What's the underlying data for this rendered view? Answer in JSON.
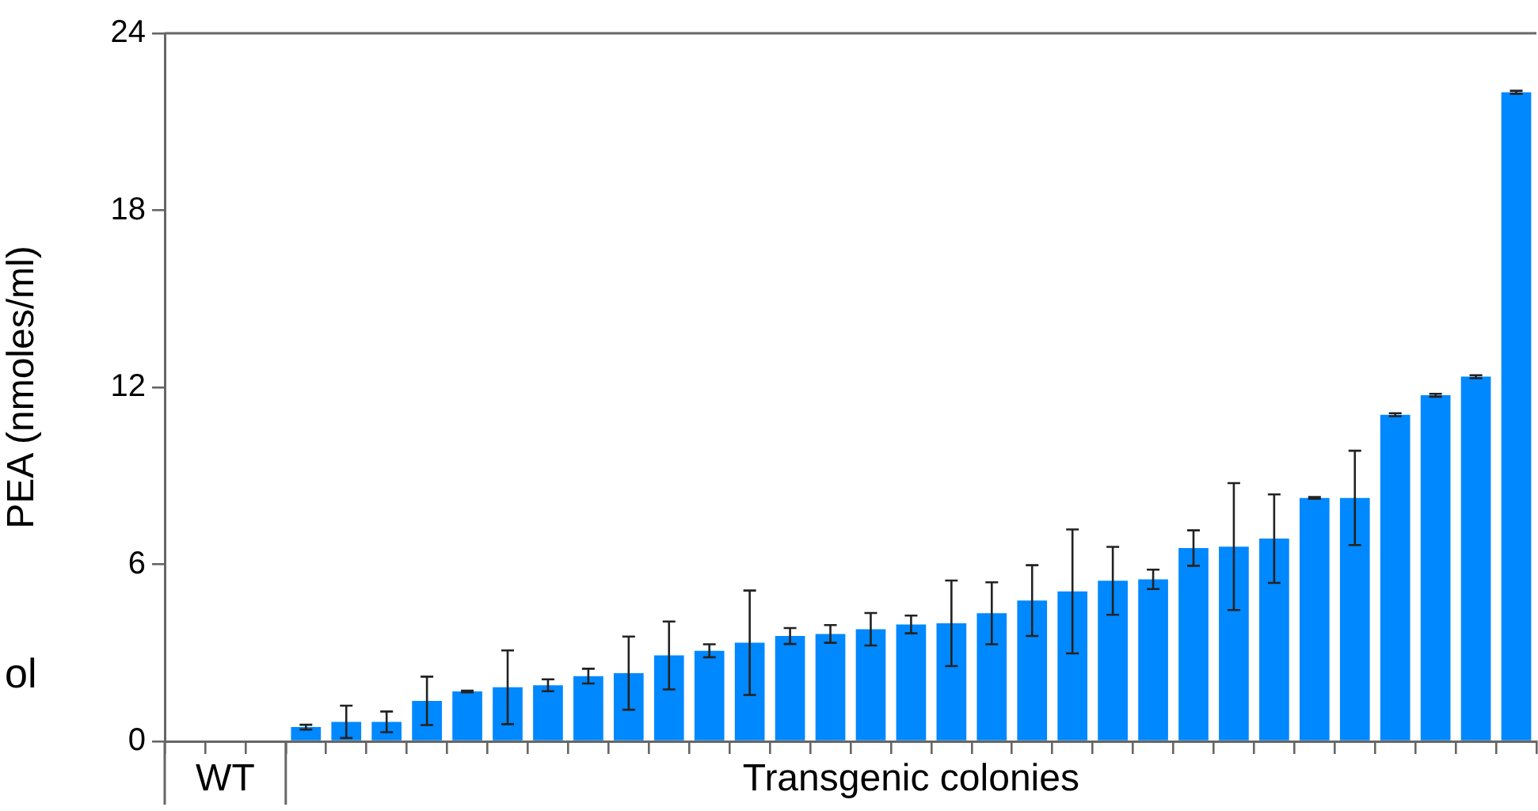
{
  "chart_data": {
    "type": "bar",
    "ylabel": "PEA (nmoles/ml)",
    "categories": [
      null,
      "WT",
      null,
      null,
      null,
      null,
      null,
      null,
      null,
      null,
      null,
      null,
      null,
      null,
      null,
      null,
      null,
      null,
      "Transgenic colonies",
      null,
      null,
      null,
      null,
      null,
      null,
      null,
      null,
      null,
      null,
      null,
      null,
      null,
      null,
      null
    ],
    "values": [
      0,
      0,
      0,
      0.48,
      0.66,
      0.66,
      1.37,
      1.69,
      1.83,
      1.9,
      2.21,
      2.31,
      2.91,
      3.07,
      3.34,
      3.57,
      3.64,
      3.8,
      3.96,
      4.0,
      4.34,
      4.77,
      5.08,
      5.44,
      5.49,
      6.55,
      6.6,
      6.87,
      8.25,
      8.25,
      11.07,
      11.73,
      12.36,
      22.0
    ],
    "errors": [
      null,
      null,
      null,
      0.08,
      0.55,
      0.35,
      0.82,
      0.03,
      1.25,
      0.2,
      0.25,
      1.24,
      1.15,
      0.22,
      1.77,
      0.27,
      0.3,
      0.55,
      0.3,
      1.45,
      1.05,
      1.2,
      2.1,
      1.15,
      0.33,
      0.6,
      2.15,
      1.5,
      0.03,
      1.6,
      0.05,
      0.05,
      0.05,
      0.05
    ],
    "color": "#0088ff",
    "ylim": [
      0,
      24
    ],
    "yticks": [
      0,
      6,
      12,
      18,
      24
    ],
    "grid": false,
    "legend": false,
    "annotations": [
      "ol"
    ]
  }
}
